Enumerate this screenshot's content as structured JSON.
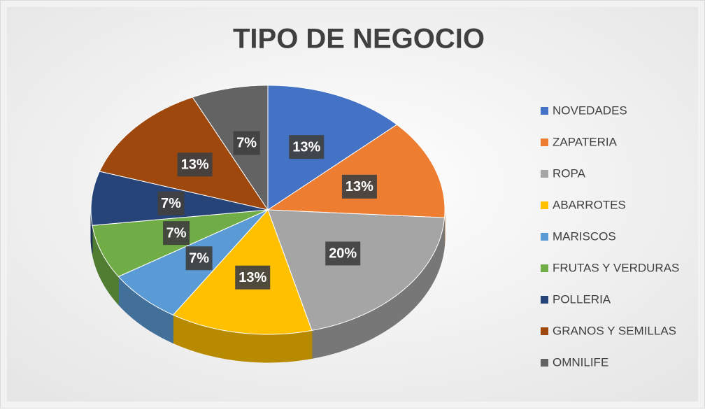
{
  "chart_data": {
    "type": "pie",
    "title": "TIPO DE NEGOCIO",
    "categories": [
      "NOVEDADES",
      "ZAPATERIA",
      "ROPA",
      "ABARROTES",
      "MARISCOS",
      "FRUTAS Y VERDURAS",
      "POLLERIA",
      "GRANOS Y SEMILLAS",
      "OMNILIFE"
    ],
    "values": [
      13,
      13,
      20,
      13,
      7,
      7,
      7,
      13,
      7
    ],
    "value_labels": [
      "13%",
      "13%",
      "20%",
      "13%",
      "7%",
      "7%",
      "7%",
      "13%",
      "7%"
    ],
    "colors": [
      "#4472c4",
      "#ed7d31",
      "#a5a5a5",
      "#ffc000",
      "#5b9bd5",
      "#70ad47",
      "#264478",
      "#9e480e",
      "#636363"
    ],
    "legend": "right"
  }
}
